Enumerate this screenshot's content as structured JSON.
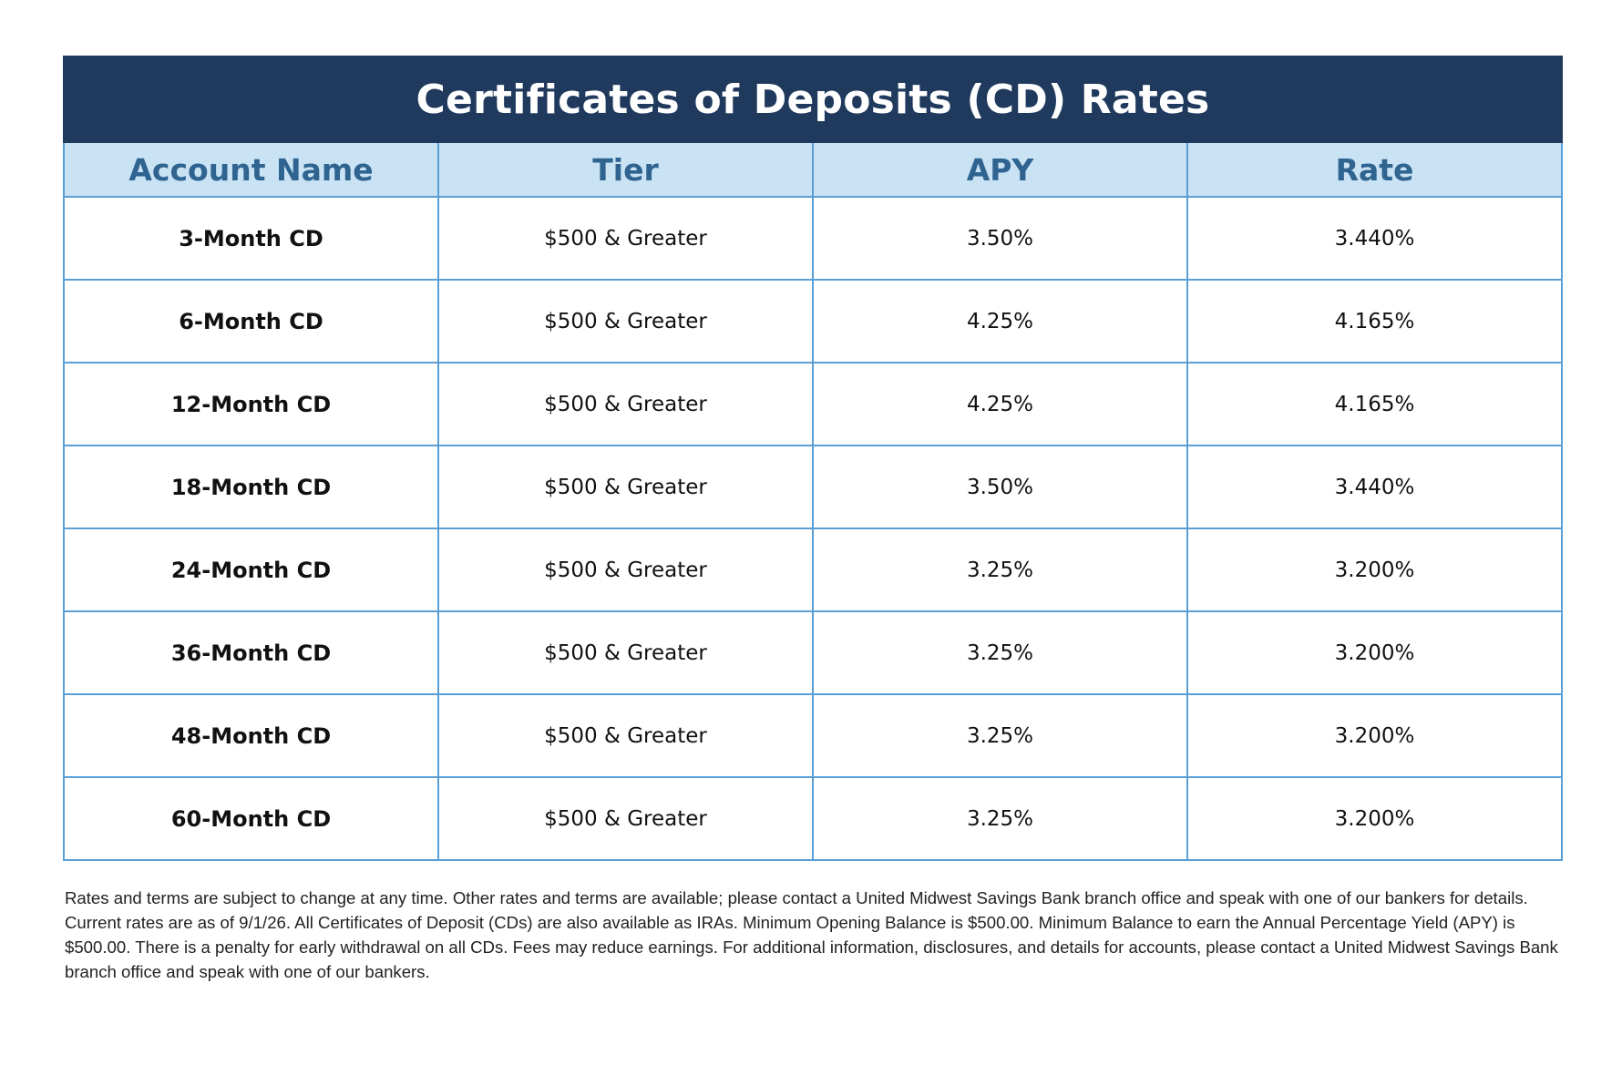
{
  "table": {
    "title": "Certificates of Deposits (CD) Rates",
    "columns": [
      "Account Name",
      "Tier",
      "APY",
      "Rate"
    ],
    "rows": [
      {
        "name": "3-Month CD",
        "tier": "$500 & Greater",
        "apy": "3.50%",
        "rate": "3.440%"
      },
      {
        "name": "6-Month CD",
        "tier": "$500 & Greater",
        "apy": "4.25%",
        "rate": "4.165%"
      },
      {
        "name": "12-Month CD",
        "tier": "$500 & Greater",
        "apy": "4.25%",
        "rate": "4.165%"
      },
      {
        "name": "18-Month CD",
        "tier": "$500 & Greater",
        "apy": "3.50%",
        "rate": "3.440%"
      },
      {
        "name": "24-Month CD",
        "tier": "$500 & Greater",
        "apy": "3.25%",
        "rate": "3.200%"
      },
      {
        "name": "36-Month CD",
        "tier": "$500 & Greater",
        "apy": "3.25%",
        "rate": "3.200%"
      },
      {
        "name": "48-Month CD",
        "tier": "$500 & Greater",
        "apy": "3.25%",
        "rate": "3.200%"
      },
      {
        "name": "60-Month CD",
        "tier": "$500 & Greater",
        "apy": "3.25%",
        "rate": "3.200%"
      }
    ]
  },
  "disclaimer": "Rates and terms are subject to change at any time. Other rates and terms are available; please contact a United Midwest Savings Bank branch office and speak with one of our bankers for details. Current rates are as of 9/1/26. All Certificates of Deposit (CDs) are also available as IRAs. Minimum Opening Balance is $500.00. Minimum Balance to earn the Annual Percentage Yield (APY) is $500.00. There is a penalty for early withdrawal on all CDs. Fees may reduce earnings. For additional information, disclosures, and details for accounts, please contact a United Midwest Savings Bank branch office and speak with one of our bankers.",
  "colors": {
    "title_bg": "#203a5e",
    "header_bg": "#c9e2f4",
    "header_text": "#2f6490",
    "grid": "#5a9fd6"
  }
}
